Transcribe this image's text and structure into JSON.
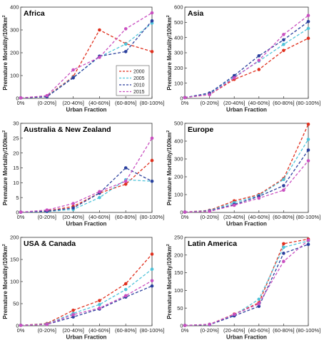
{
  "shared": {
    "categories": [
      "0%",
      "(0-20%]",
      "(20-40%]",
      "(40-60%]",
      "(60-80%]",
      "(80-100%]"
    ],
    "xlabel": "Urban Fraction",
    "ylabel": "Premature Mortality/100km",
    "ylabel_sup": "2",
    "legend": {
      "position": "inside-lower-right of Africa panel",
      "entries": [
        "2000",
        "2005",
        "2010",
        "2015"
      ]
    },
    "colors": {
      "2000": "#e0301e",
      "2005": "#4fc3d9",
      "2010": "#2a3f9d",
      "2015": "#c94fc0"
    },
    "grid": false
  },
  "chart_data": [
    {
      "type": "line",
      "title": "Africa",
      "ylim": [
        0,
        400
      ],
      "yticks": [
        0,
        100,
        200,
        300,
        400
      ],
      "series": [
        {
          "name": "2000",
          "values": [
            2,
            10,
            95,
            300,
            240,
            205
          ]
        },
        {
          "name": "2005",
          "values": [
            2,
            8,
            92,
            182,
            238,
            330
          ]
        },
        {
          "name": "2010",
          "values": [
            2,
            7,
            90,
            185,
            205,
            340
          ]
        },
        {
          "name": "2015",
          "values": [
            2,
            12,
            125,
            180,
            305,
            375
          ]
        }
      ]
    },
    {
      "type": "line",
      "title": "Asia",
      "ylim": [
        0,
        600
      ],
      "yticks": [
        0,
        100,
        200,
        300,
        400,
        500,
        600
      ],
      "series": [
        {
          "name": "2000",
          "values": [
            5,
            25,
            125,
            190,
            315,
            395
          ]
        },
        {
          "name": "2005",
          "values": [
            5,
            30,
            140,
            245,
            355,
            460
          ]
        },
        {
          "name": "2010",
          "values": [
            5,
            35,
            150,
            280,
            385,
            505
          ]
        },
        {
          "name": "2015",
          "values": [
            5,
            25,
            135,
            250,
            420,
            545
          ]
        }
      ]
    },
    {
      "type": "line",
      "title": "Australia & New Zealand",
      "ylim": [
        0,
        30
      ],
      "yticks": [
        0,
        5,
        10,
        15,
        20,
        25,
        30
      ],
      "series": [
        {
          "name": "2000",
          "values": [
            0.1,
            0.5,
            2,
            6.5,
            9.5,
            17.5
          ]
        },
        {
          "name": "2005",
          "values": [
            0.1,
            0.3,
            1,
            5,
            11,
            10.5
          ]
        },
        {
          "name": "2010",
          "values": [
            0.1,
            0.4,
            1.5,
            6.5,
            15,
            10.5
          ]
        },
        {
          "name": "2015",
          "values": [
            0.1,
            0.8,
            3,
            7,
            10.5,
            25
          ]
        }
      ]
    },
    {
      "type": "line",
      "title": "Europe",
      "ylim": [
        0,
        500
      ],
      "yticks": [
        0,
        100,
        200,
        300,
        400,
        500
      ],
      "series": [
        {
          "name": "2000",
          "values": [
            2,
            12,
            65,
            100,
            190,
            495
          ]
        },
        {
          "name": "2005",
          "values": [
            2,
            10,
            55,
            95,
            185,
            410
          ]
        },
        {
          "name": "2010",
          "values": [
            2,
            8,
            45,
            90,
            150,
            350
          ]
        },
        {
          "name": "2015",
          "values": [
            2,
            6,
            40,
            80,
            125,
            290
          ]
        }
      ]
    },
    {
      "type": "line",
      "title": "USA & Canada",
      "ylim": [
        0,
        200
      ],
      "yticks": [
        0,
        50,
        100,
        150,
        200
      ],
      "series": [
        {
          "name": "2000",
          "values": [
            1,
            5,
            35,
            57,
            95,
            162
          ]
        },
        {
          "name": "2005",
          "values": [
            1,
            4,
            28,
            48,
            82,
            128
          ]
        },
        {
          "name": "2010",
          "values": [
            1,
            3,
            20,
            38,
            65,
            90
          ]
        },
        {
          "name": "2015",
          "values": [
            1,
            3,
            25,
            40,
            68,
            102
          ]
        }
      ]
    },
    {
      "type": "line",
      "title": "Latin America",
      "ylim": [
        0,
        250
      ],
      "yticks": [
        0,
        50,
        100,
        150,
        200,
        250
      ],
      "series": [
        {
          "name": "2000",
          "values": [
            1,
            4,
            33,
            65,
            232,
            245
          ]
        },
        {
          "name": "2005",
          "values": [
            1,
            4,
            30,
            75,
            222,
            240
          ]
        },
        {
          "name": "2010",
          "values": [
            1,
            3,
            28,
            55,
            205,
            230
          ]
        },
        {
          "name": "2015",
          "values": [
            1,
            4,
            32,
            62,
            182,
            242
          ]
        }
      ]
    }
  ]
}
